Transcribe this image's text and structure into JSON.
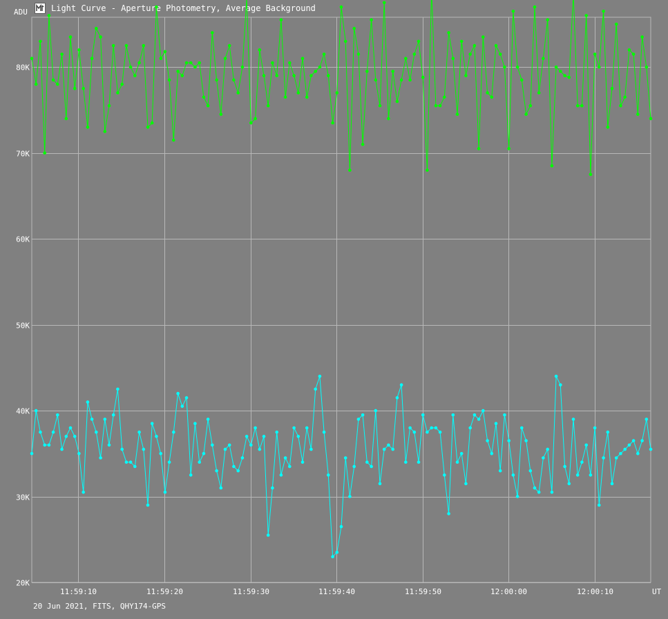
{
  "window": {
    "title": "Light Curve - Aperture Photometry, Average Background",
    "footer": "20 Jun 2021, FITS, QHY174-GPS"
  },
  "icons": {
    "app": "light-curve-app-icon"
  },
  "colors": {
    "background": "#808080",
    "grid": "#b8b8b8",
    "series_green": "#00ff00",
    "series_cyan": "#00ffff"
  },
  "chart_data": {
    "type": "line",
    "ylabel": "ADU",
    "xunit": "UT",
    "ylim": [
      20000,
      85000
    ],
    "yticks": [
      {
        "v": 20000,
        "label": "20K"
      },
      {
        "v": 30000,
        "label": "30K"
      },
      {
        "v": 40000,
        "label": "40K"
      },
      {
        "v": 50000,
        "label": "50K"
      },
      {
        "v": 60000,
        "label": "60K"
      },
      {
        "v": 70000,
        "label": "70K"
      },
      {
        "v": 80000,
        "label": "80K"
      }
    ],
    "xlim": [
      "11:59:04.6",
      "12:00:16.5"
    ],
    "xticks": [
      "11:59:10",
      "11:59:20",
      "11:59:30",
      "11:59:40",
      "11:59:50",
      "12:00:00",
      "12:00:10"
    ],
    "grid": true,
    "x_start": "11:59:04.6",
    "x_step_seconds": 0.5,
    "series": [
      {
        "color": "#00ff00",
        "values": [
          81000,
          78000,
          83000,
          70000,
          86000,
          78500,
          78000,
          81500,
          74000,
          83500,
          77500,
          82000,
          77500,
          73000,
          81000,
          84500,
          83500,
          72500,
          75500,
          82500,
          77000,
          78000,
          82500,
          80000,
          79000,
          80500,
          82500,
          73000,
          73500,
          87000,
          81000,
          81800,
          78500,
          71500,
          79500,
          79000,
          80500,
          80500,
          80000,
          80500,
          76500,
          75500,
          84000,
          78500,
          74500,
          81000,
          82500,
          78500,
          77000,
          80000,
          88000,
          73500,
          74000,
          82000,
          79000,
          75500,
          80500,
          79000,
          85500,
          76500,
          80500,
          79000,
          77000,
          81000,
          76500,
          79000,
          79500,
          80000,
          81500,
          79000,
          73500,
          77000,
          87000,
          83000,
          68000,
          84500,
          81500,
          71000,
          79500,
          85500,
          78500,
          75500,
          87500,
          74000,
          79500,
          76000,
          78500,
          81000,
          78500,
          81500,
          83000,
          78800,
          68000,
          89000,
          75500,
          75500,
          76500,
          84000,
          81000,
          74500,
          83000,
          79000,
          81500,
          82500,
          70500,
          83500,
          77000,
          76500,
          82500,
          81500,
          80000,
          70500,
          86500,
          80000,
          78500,
          74500,
          75500,
          87000,
          77000,
          81000,
          85500,
          68500,
          80000,
          79500,
          79000,
          78800,
          88500,
          75500,
          75500,
          86000,
          67500,
          81500,
          80000,
          86500,
          73000,
          77500,
          85000,
          75500,
          76500,
          82000,
          81500,
          74500,
          83500,
          80000,
          74000
        ],
        "marker_every": 1
      },
      {
        "color": "#00ffff",
        "values": [
          35000,
          40000,
          37500,
          36000,
          36000,
          37500,
          39500,
          35500,
          37000,
          38000,
          37000,
          35000,
          30500,
          41000,
          39000,
          37500,
          34500,
          39000,
          36000,
          39500,
          42500,
          35500,
          34000,
          34000,
          33500,
          37500,
          35500,
          29000,
          38500,
          37000,
          35000,
          30500,
          34000,
          37500,
          42000,
          40500,
          41500,
          32500,
          38500,
          34000,
          35000,
          39000,
          36000,
          33000,
          31000,
          35500,
          36000,
          33500,
          33000,
          34500,
          37000,
          36000,
          38000,
          35500,
          37000,
          25500,
          31000,
          37500,
          32500,
          34500,
          33500,
          38000,
          37000,
          34000,
          38000,
          35500,
          42500,
          44000,
          37500,
          32500,
          23000,
          23500,
          26500,
          34500,
          30000,
          33500,
          39000,
          39500,
          34000,
          33500,
          40000,
          31500,
          35500,
          36000,
          35500,
          41500,
          43000,
          34000,
          38000,
          37500,
          34000,
          39500,
          37500,
          38000,
          38000,
          37500,
          32500,
          28000,
          39500,
          34000,
          35000,
          31500,
          38000,
          39500,
          39000,
          40000,
          36500,
          35000,
          38500,
          33000,
          39500,
          36500,
          32500,
          30000,
          38000,
          36500,
          33000,
          31000,
          30500,
          34500,
          35500,
          30500,
          44000,
          43000,
          33500,
          31500,
          39000,
          32500,
          34000,
          36000,
          32500,
          38000,
          29000,
          34500,
          37500,
          31500,
          34500,
          35000,
          35500,
          36000,
          36500,
          35000,
          36500,
          39000,
          35500
        ],
        "marker_every": 1
      }
    ]
  }
}
